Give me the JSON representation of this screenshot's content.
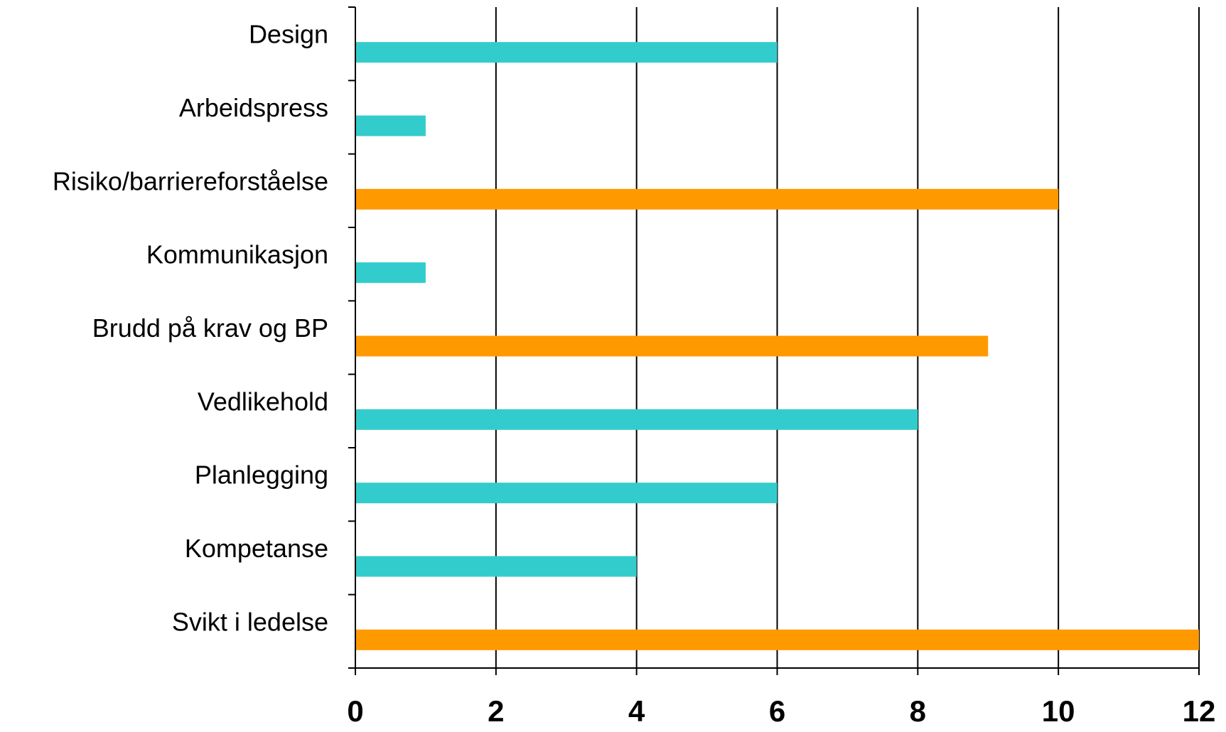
{
  "chart_data": {
    "type": "bar",
    "orientation": "horizontal",
    "categories": [
      "Design",
      "Arbeidspress",
      "Risiko/barriereforståelse",
      "Kommunikasjon",
      "Brudd på krav og BP",
      "Vedlikehold",
      "Planlegging",
      "Kompetanse",
      "Svikt i ledelse"
    ],
    "values": [
      6,
      1,
      10,
      1,
      9,
      8,
      6,
      4,
      12
    ],
    "bar_colors": [
      "#33CCCC",
      "#33CCCC",
      "#FF9900",
      "#33CCCC",
      "#FF9900",
      "#33CCCC",
      "#33CCCC",
      "#33CCCC",
      "#FF9900"
    ],
    "x_ticks": [
      "0",
      "2",
      "4",
      "6",
      "8",
      "10",
      "12"
    ],
    "xlim": [
      0,
      12
    ],
    "grid": "vertical",
    "title": "",
    "xlabel": "",
    "ylabel": ""
  }
}
